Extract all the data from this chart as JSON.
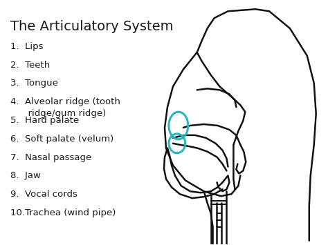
{
  "title": "The Articulatory System",
  "items": [
    "1.  Lips",
    "2.  Teeth",
    "3.  Tongue",
    "4.  Alveolar ridge (tooth\n      ridge/gum ridge)",
    "5.  Hard palate",
    "6.  Soft palate (velum)",
    "7.  Nasal passage",
    "8.  Jaw",
    "9.  Vocal cords",
    "10.Trachea (wind pipe)"
  ],
  "bg_color": "#ffffff",
  "text_color": "#1a1a1a",
  "title_fontsize": 14,
  "item_fontsize": 9.5,
  "outline_color": "#111111",
  "highlight_color": "#2ab5be",
  "lw": 1.8
}
